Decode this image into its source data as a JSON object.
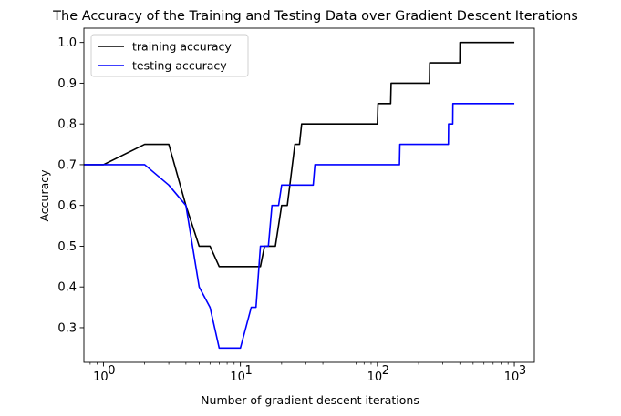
{
  "chart_data": {
    "type": "line",
    "title": "The Accuracy of the Training and Testing Data over Gradient Descent Iterations",
    "xlabel": "Number of gradient descent iterations",
    "ylabel": "Accuracy",
    "xscale": "log",
    "xlim": [
      0.72,
      1400
    ],
    "ylim": [
      0.215,
      1.035
    ],
    "x_ticks": [
      {
        "value": 1,
        "label": "10",
        "exp": "0"
      },
      {
        "value": 10,
        "label": "10",
        "exp": "1"
      },
      {
        "value": 100,
        "label": "10",
        "exp": "2"
      },
      {
        "value": 1000,
        "label": "10",
        "exp": "3"
      }
    ],
    "y_ticks": [
      0.3,
      0.4,
      0.5,
      0.6,
      0.7,
      0.8,
      0.9,
      1.0
    ],
    "y_tick_labels": [
      "0.3",
      "0.4",
      "0.5",
      "0.6",
      "0.7",
      "0.8",
      "0.9",
      "1.0"
    ],
    "grid": false,
    "legend_position": "top-left",
    "series": [
      {
        "name": "training accuracy",
        "color": "#000000",
        "points": [
          [
            0.72,
            0.7
          ],
          [
            1,
            0.7
          ],
          [
            2,
            0.75
          ],
          [
            3,
            0.75
          ],
          [
            4,
            0.6
          ],
          [
            5,
            0.5
          ],
          [
            6,
            0.5
          ],
          [
            7,
            0.45
          ],
          [
            8,
            0.45
          ],
          [
            14,
            0.45
          ],
          [
            15,
            0.5
          ],
          [
            18,
            0.5
          ],
          [
            20,
            0.6
          ],
          [
            22,
            0.6
          ],
          [
            25,
            0.75
          ],
          [
            27,
            0.75
          ],
          [
            28,
            0.8
          ],
          [
            100,
            0.8
          ],
          [
            101,
            0.85
          ],
          [
            125,
            0.85
          ],
          [
            126,
            0.9
          ],
          [
            240,
            0.9
          ],
          [
            241,
            0.95
          ],
          [
            400,
            0.95
          ],
          [
            401,
            1.0
          ],
          [
            1000,
            1.0
          ]
        ]
      },
      {
        "name": "testing accuracy",
        "color": "#0000ff",
        "points": [
          [
            0.72,
            0.7
          ],
          [
            2,
            0.7
          ],
          [
            3,
            0.65
          ],
          [
            4,
            0.6
          ],
          [
            5,
            0.4
          ],
          [
            6,
            0.35
          ],
          [
            7,
            0.25
          ],
          [
            10,
            0.25
          ],
          [
            12,
            0.35
          ],
          [
            13,
            0.35
          ],
          [
            14,
            0.5
          ],
          [
            16,
            0.5
          ],
          [
            17,
            0.6
          ],
          [
            19,
            0.6
          ],
          [
            20,
            0.65
          ],
          [
            34,
            0.65
          ],
          [
            35,
            0.7
          ],
          [
            145,
            0.7
          ],
          [
            146,
            0.75
          ],
          [
            330,
            0.75
          ],
          [
            331,
            0.8
          ],
          [
            355,
            0.8
          ],
          [
            356,
            0.85
          ],
          [
            1000,
            0.85
          ]
        ]
      }
    ]
  }
}
